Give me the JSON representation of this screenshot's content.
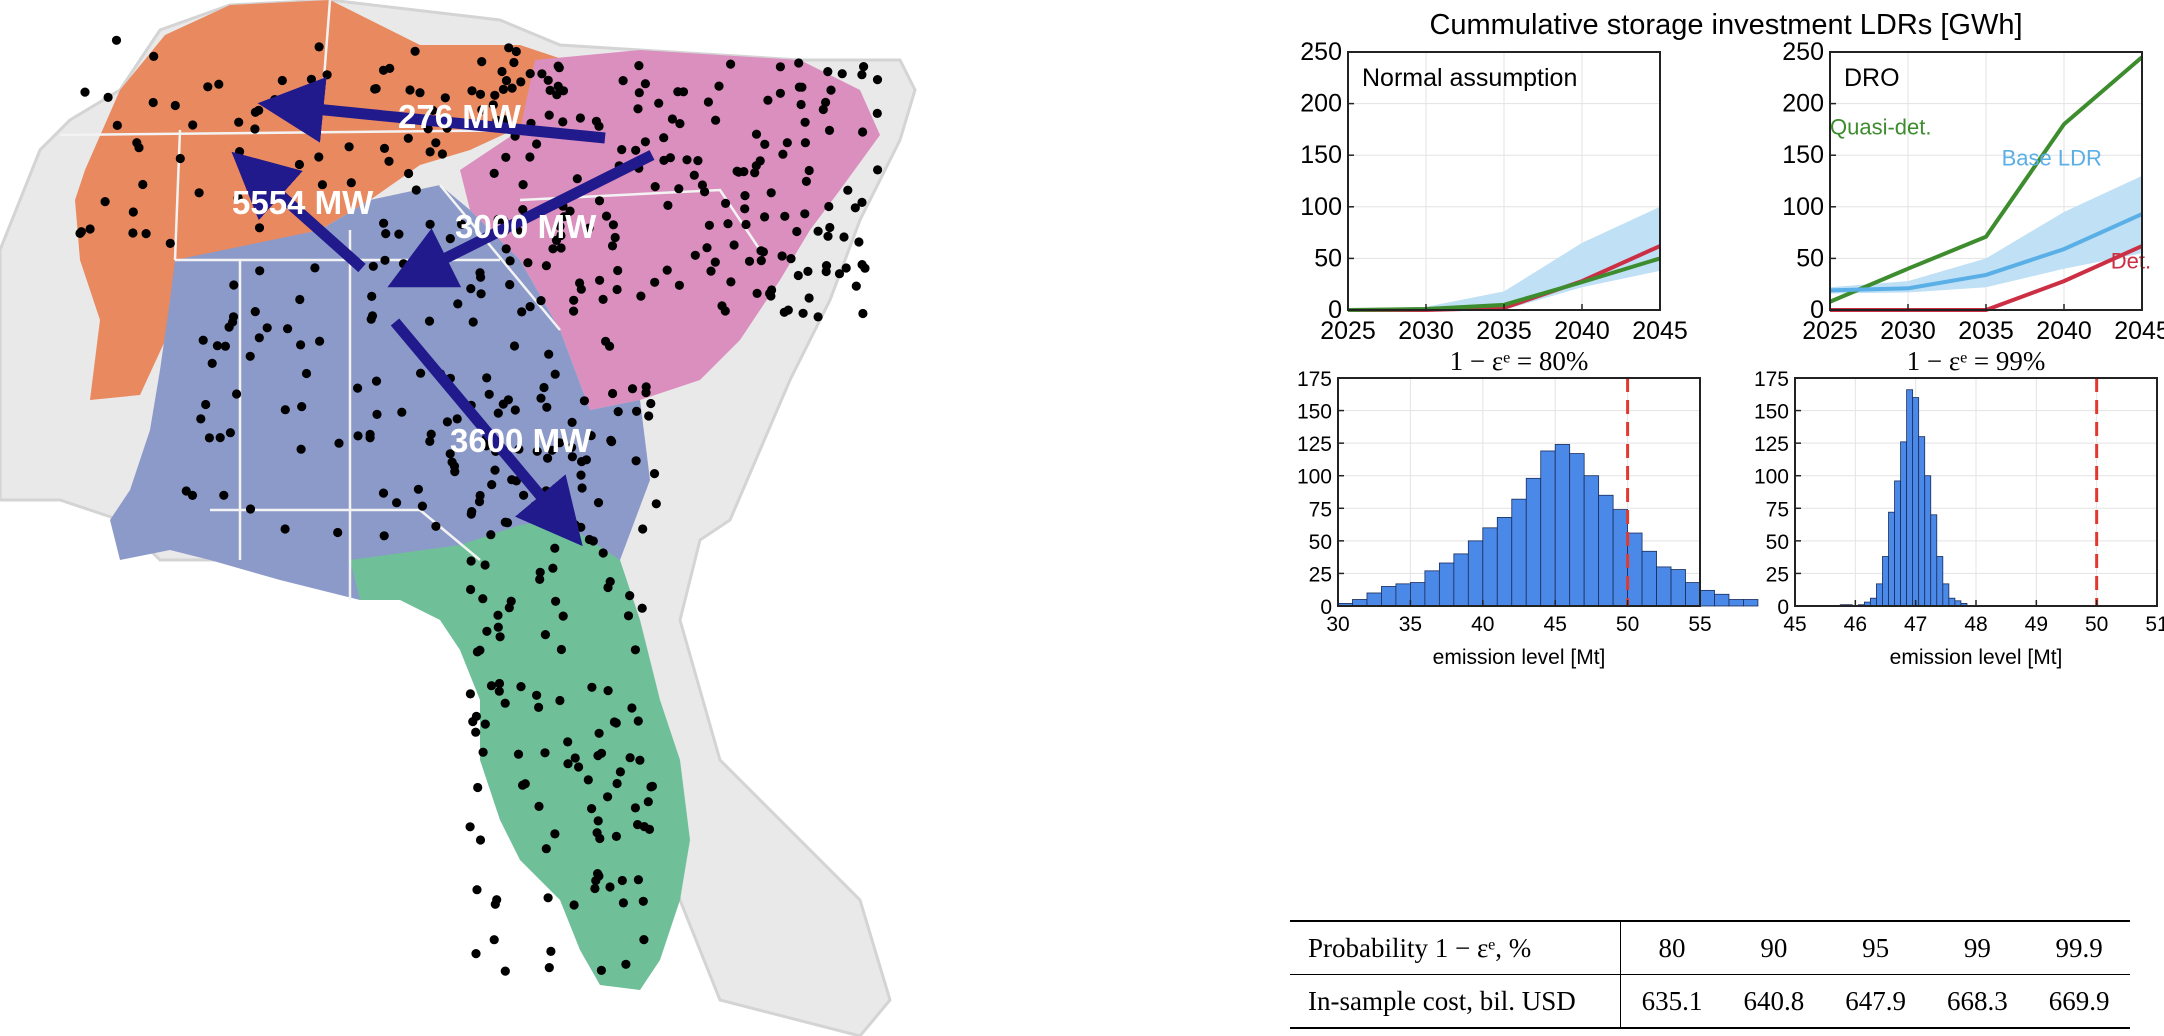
{
  "map": {
    "regions": [
      {
        "name": "orange",
        "color": "#E9895F"
      },
      {
        "name": "pink",
        "color": "#DB8FBF"
      },
      {
        "name": "blue",
        "color": "#8C9AC9"
      },
      {
        "name": "green",
        "color": "#6FBF98"
      }
    ],
    "flows": [
      {
        "label": "276 MW"
      },
      {
        "label": "5554 MW"
      },
      {
        "label": "3000 MW"
      },
      {
        "label": "3600 MW"
      }
    ],
    "arrow_color": "#211A8C"
  },
  "main_title": "Cummulative storage investment LDRs [GWh]",
  "chart_data": [
    {
      "type": "line",
      "title": "Normal assumption",
      "x": [
        2025,
        2030,
        2035,
        2040,
        2045
      ],
      "xlim": [
        2025,
        2045
      ],
      "ylim": [
        0,
        250
      ],
      "yticks": [
        "0",
        "50",
        "100",
        "150",
        "200",
        "250"
      ],
      "xticks": [
        "2025",
        "2030",
        "2035",
        "2040",
        "2045"
      ],
      "grid": true,
      "band": {
        "lower": [
          0,
          0,
          0,
          22,
          38
        ],
        "upper": [
          1,
          3,
          18,
          65,
          100
        ],
        "color": "#BFE0F5"
      },
      "series": [
        {
          "values": [
            0,
            0,
            2,
            28,
            62
          ],
          "color": "#CC2F44"
        },
        {
          "values": [
            0,
            1,
            5,
            27,
            50
          ],
          "color": "#3D8C2E"
        }
      ]
    },
    {
      "type": "line",
      "title": "DRO",
      "x": [
        2025,
        2030,
        2035,
        2040,
        2045
      ],
      "xlim": [
        2025,
        2045
      ],
      "ylim": [
        0,
        250
      ],
      "yticks": [
        "0",
        "50",
        "100",
        "150",
        "200",
        "250"
      ],
      "xticks": [
        "2025",
        "2030",
        "2035",
        "2040",
        "2045"
      ],
      "grid": true,
      "band": {
        "lower": [
          16,
          17,
          22,
          40,
          55
        ],
        "upper": [
          22,
          28,
          50,
          95,
          130
        ],
        "color": "#BFE0F5"
      },
      "series": [
        {
          "name": "Quasi-det.",
          "values": [
            8,
            40,
            71,
            180,
            245
          ],
          "color": "#3D8C2E"
        },
        {
          "name": "Base LDR",
          "values": [
            19,
            21,
            34,
            59,
            93
          ],
          "color": "#5AAFE6"
        },
        {
          "name": "Det.",
          "values": [
            0,
            0,
            0,
            28,
            62
          ],
          "color": "#CC2F44"
        }
      ]
    },
    {
      "type": "bar",
      "title": "1 − εᵉ = 80%",
      "xlabel": "emission level [Mt]",
      "xlim": [
        30,
        55
      ],
      "ylim": [
        0,
        175
      ],
      "xticks": [
        "30",
        "35",
        "40",
        "45",
        "50",
        "55"
      ],
      "yticks": [
        "0",
        "25",
        "50",
        "75",
        "100",
        "125",
        "150",
        "175"
      ],
      "bin_start": 30,
      "bin_width": 1,
      "values": [
        2,
        5,
        10,
        15,
        17,
        18,
        27,
        33,
        40,
        50,
        60,
        68,
        82,
        98,
        119,
        124,
        117,
        100,
        85,
        74,
        56,
        42,
        30,
        28,
        18,
        12,
        9,
        5,
        5
      ],
      "threshold": 50,
      "grid": true
    },
    {
      "type": "bar",
      "title": "1 − εᵉ = 99%",
      "xlabel": "emission level [Mt]",
      "xlim": [
        45,
        51
      ],
      "ylim": [
        0,
        175
      ],
      "xticks": [
        "45",
        "46",
        "47",
        "48",
        "49",
        "50",
        "51"
      ],
      "yticks": [
        "0",
        "25",
        "50",
        "75",
        "100",
        "125",
        "150",
        "175"
      ],
      "bin_start": 45.75,
      "bin_width": 0.1,
      "values": [
        1,
        1,
        0,
        1,
        3,
        6,
        17,
        38,
        72,
        96,
        126,
        166,
        160,
        130,
        100,
        70,
        38,
        17,
        6,
        4,
        2
      ],
      "threshold": 50,
      "grid": true
    }
  ],
  "table": {
    "rows": [
      {
        "label": "Probability 1 − εᵉ, %",
        "cells": [
          "80",
          "90",
          "95",
          "99",
          "99.9"
        ]
      },
      {
        "label": "In-sample cost, bil. USD",
        "cells": [
          "635.1",
          "640.8",
          "647.9",
          "668.3",
          "669.9"
        ]
      }
    ]
  }
}
